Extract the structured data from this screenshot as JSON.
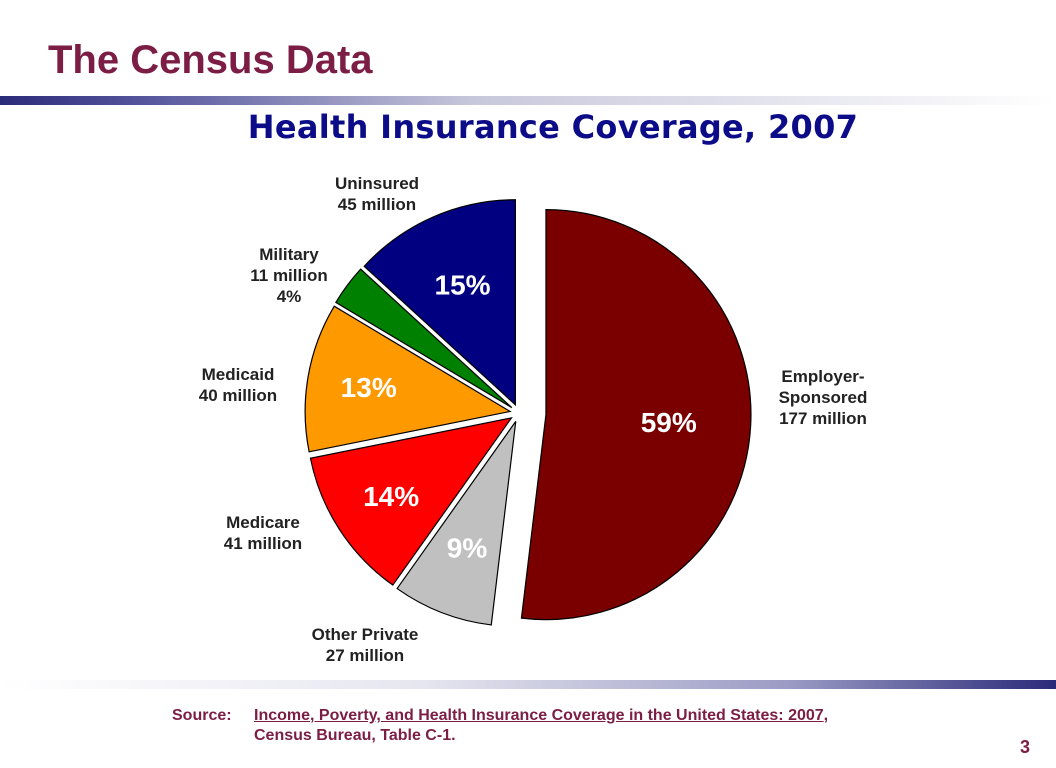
{
  "slide": {
    "title": "The Census Data",
    "page_number": "3"
  },
  "source": {
    "prefix": "Source:",
    "title": "Income, Poverty, and Health Insurance Coverage in the United States:  2007",
    "suffix": ",",
    "line2": "Census Bureau, Table C-1."
  },
  "chart_data": {
    "type": "pie",
    "title": "Health Insurance Coverage, 2007",
    "start_angle_deg": 0,
    "direction": "clockwise",
    "slices": [
      {
        "name": "Employer-Sponsored",
        "label_lines": [
          "Employer-",
          "Sponsored",
          "177 million"
        ],
        "value_millions": 177,
        "percent_label": "59%",
        "color": "#7a0000",
        "pct_color": "#ffffff",
        "exploded": true
      },
      {
        "name": "Other Private",
        "label_lines": [
          "Other Private",
          "27 million"
        ],
        "value_millions": 27,
        "percent_label": "9%",
        "color": "#c0c0c0",
        "pct_color": "#ffffff",
        "exploded": false
      },
      {
        "name": "Medicare",
        "label_lines": [
          "Medicare",
          "41 million"
        ],
        "value_millions": 41,
        "percent_label": "14%",
        "color": "#ff0000",
        "pct_color": "#ffffff",
        "exploded": false
      },
      {
        "name": "Medicaid",
        "label_lines": [
          "Medicaid",
          "40 million"
        ],
        "value_millions": 40,
        "percent_label": "13%",
        "color": "#ff9900",
        "pct_color": "#ffffff",
        "exploded": false
      },
      {
        "name": "Military",
        "label_lines": [
          "Military",
          "11 million",
          "4%"
        ],
        "value_millions": 11,
        "percent_label": "",
        "color": "#008000",
        "pct_color": "#ffffff",
        "exploded": false
      },
      {
        "name": "Uninsured",
        "label_lines": [
          "Uninsured",
          "45 million"
        ],
        "value_millions": 45,
        "percent_label": "15%",
        "color": "#000080",
        "pct_color": "#ffffff",
        "exploded": false
      }
    ]
  }
}
